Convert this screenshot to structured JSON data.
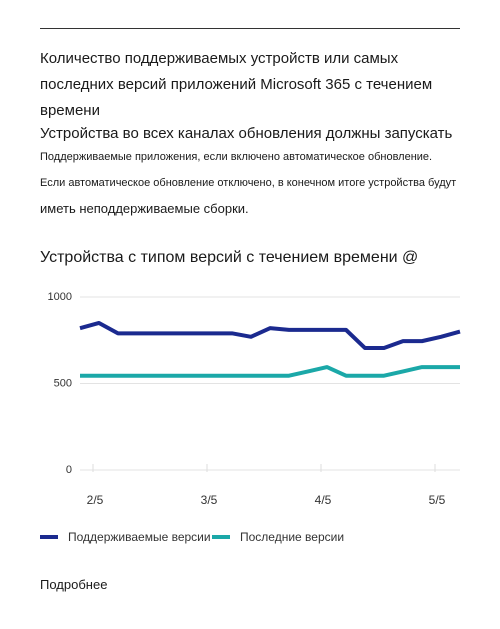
{
  "header": {
    "title": "Количество поддерживаемых устройств или самых последних версий приложений Microsoft 365 с течением времени",
    "lines": [
      "Устройства во всех каналах обновления должны запускать",
      "Поддерживаемые приложения, если включено автоматическое обновление.",
      "Если автоматическое обновление отключено, в конечном итоге устройства будут",
      "иметь неподдерживаемые сборки."
    ]
  },
  "chart_data": {
    "type": "line",
    "title": "Устройства с типом версий с течением времени @",
    "categories": [
      null,
      "2/5",
      null,
      null,
      null,
      null,
      null,
      "3/5",
      null,
      null,
      null,
      null,
      null,
      "4/5",
      null,
      null,
      null,
      null,
      null,
      "5/5",
      null
    ],
    "series": [
      {
        "name": "Поддерживаемые версии",
        "color": "#1b2a8f",
        "values": [
          820,
          850,
          790,
          790,
          790,
          790,
          790,
          790,
          790,
          770,
          820,
          810,
          810,
          810,
          810,
          705,
          705,
          745,
          745,
          770,
          800
        ]
      },
      {
        "name": "Последние версии",
        "color": "#1ba8a8",
        "values": [
          545,
          545,
          545,
          545,
          545,
          545,
          545,
          545,
          545,
          545,
          545,
          545,
          570,
          595,
          545,
          545,
          545,
          570,
          595,
          595,
          595
        ]
      }
    ],
    "ylim": [
      0,
      1000
    ],
    "yticks": [
      0,
      500,
      1000
    ],
    "grid": true
  },
  "footer": {
    "link": "Подробнее"
  }
}
